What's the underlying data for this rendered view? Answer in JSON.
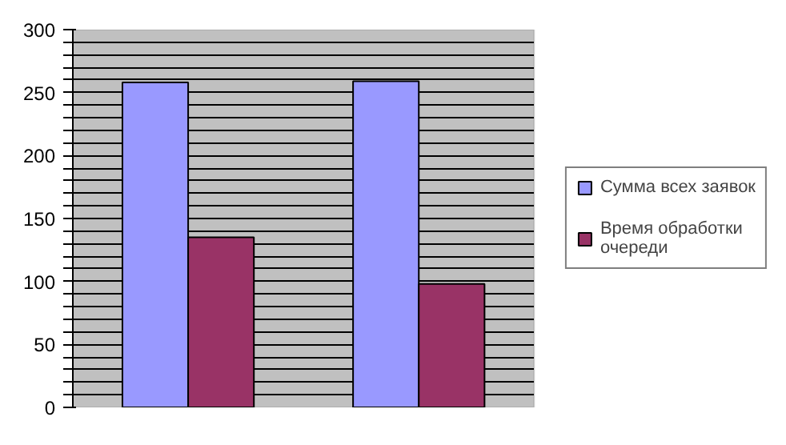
{
  "chart_data": {
    "type": "bar",
    "categories": [
      null,
      null
    ],
    "series": [
      {
        "name": "Сумма всех заявок",
        "color": "#9999ff",
        "values": [
          258,
          259
        ]
      },
      {
        "name": "Время обработки очереди",
        "color": "#993366",
        "values": [
          135,
          98
        ]
      }
    ],
    "ylim": [
      0,
      300
    ],
    "yticks": [
      0,
      {
        "value": 10,
        "label": null
      },
      {
        "value": 20,
        "label": null
      },
      {
        "value": 30,
        "label": null
      },
      {
        "value": 40,
        "label": null
      },
      50,
      {
        "value": 60,
        "label": null
      },
      {
        "value": 70,
        "label": null
      },
      {
        "value": 80,
        "label": null
      },
      {
        "value": 90,
        "label": null
      },
      100,
      {
        "value": 110,
        "label": null
      },
      {
        "value": 120,
        "label": null
      },
      {
        "value": 130,
        "label": null
      },
      {
        "value": 140,
        "label": null
      },
      150,
      {
        "value": 160,
        "label": null
      },
      {
        "value": 170,
        "label": null
      },
      {
        "value": 180,
        "label": null
      },
      {
        "value": 190,
        "label": null
      },
      200,
      {
        "value": 210,
        "label": null
      },
      {
        "value": 220,
        "label": null
      },
      {
        "value": 230,
        "label": null
      },
      {
        "value": 240,
        "label": null
      },
      250,
      {
        "value": 260,
        "label": null
      },
      {
        "value": 270,
        "label": null
      },
      {
        "value": 280,
        "label": null
      },
      {
        "value": 290,
        "label": null
      },
      300
    ],
    "grid": "y",
    "legend": "right",
    "tick_labels": "y"
  }
}
